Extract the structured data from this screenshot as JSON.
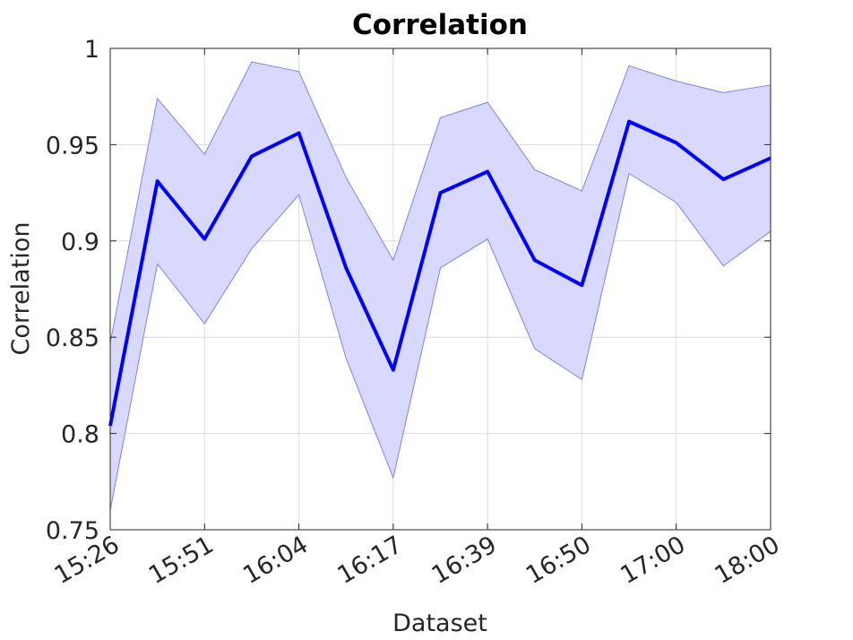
{
  "chart_data": {
    "type": "line",
    "title": "Correlation",
    "xlabel": "Dataset",
    "ylabel": "Correlation",
    "ylim": [
      0.75,
      1.0
    ],
    "yticks": [
      "0.75",
      "0.8",
      "0.85",
      "0.9",
      "0.95",
      "1"
    ],
    "ytick_values": [
      0.75,
      0.8,
      0.85,
      0.9,
      0.95,
      1.0
    ],
    "xtick_labels": [
      "15:26",
      "15:51",
      "16:04",
      "16:17",
      "16:39",
      "16:50",
      "17:00",
      "18:00"
    ],
    "xtick_index": [
      0,
      2,
      4,
      6,
      8,
      10,
      12,
      14
    ],
    "grid": true,
    "series": [
      {
        "values": [
          0.804,
          0.931,
          0.901,
          0.944,
          0.956,
          0.886,
          0.833,
          0.925,
          0.936,
          0.89,
          0.877,
          0.962,
          0.951,
          0.932,
          0.943
        ],
        "lower": [
          0.76,
          0.888,
          0.857,
          0.896,
          0.924,
          0.839,
          0.777,
          0.886,
          0.901,
          0.844,
          0.828,
          0.935,
          0.92,
          0.887,
          0.905
        ],
        "upper": [
          0.847,
          0.974,
          0.945,
          0.993,
          0.988,
          0.933,
          0.89,
          0.964,
          0.972,
          0.937,
          0.926,
          0.991,
          0.983,
          0.977,
          0.981
        ],
        "color": "#0000ff",
        "band_color": "#d9d9ff",
        "band_edge_color": "#8080ee"
      }
    ]
  }
}
